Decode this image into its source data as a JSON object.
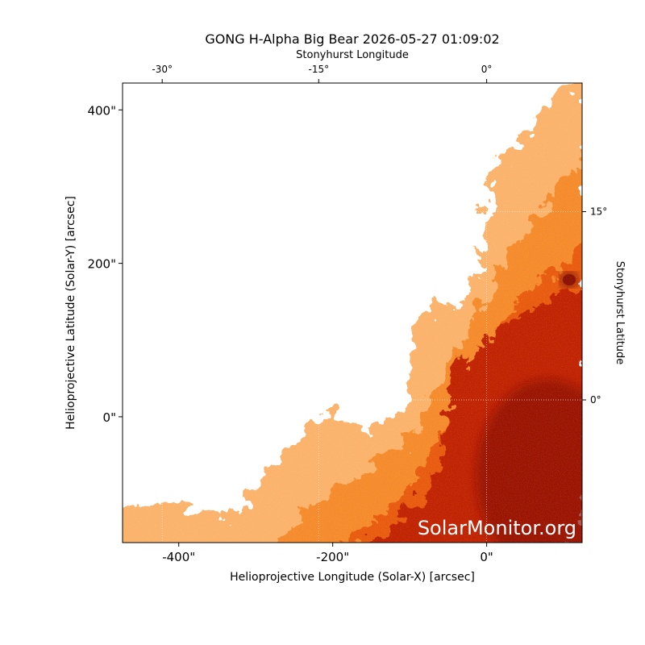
{
  "chart_data": {
    "type": "image",
    "title": "GONG H-Alpha Big Bear 2026-05-27 01:09:02",
    "xlabel": "Helioprojective Longitude (Solar-X) [arcsec]",
    "ylabel": "Helioprojective Latitude (Solar-Y) [arcsec]",
    "x2label": "Stonyhurst Longitude",
    "y2label": "Stonyhurst Latitude",
    "watermark": "SolarMonitor.org",
    "xlim": [
      -473,
      124
    ],
    "ylim": [
      -164,
      435
    ],
    "xticks": [
      {
        "value": -400,
        "label": "-400\""
      },
      {
        "value": -200,
        "label": "-200\""
      },
      {
        "value": 0,
        "label": "0\""
      }
    ],
    "yticks": [
      {
        "value": 0,
        "label": "0\""
      },
      {
        "value": 200,
        "label": "200\""
      },
      {
        "value": 400,
        "label": "400\""
      }
    ],
    "x2ticks": [
      {
        "value": -30,
        "label": "-30°"
      },
      {
        "value": -15,
        "label": "-15°"
      },
      {
        "value": 0,
        "label": "0°"
      }
    ],
    "y2ticks": [
      {
        "value": 0,
        "label": "0°"
      },
      {
        "value": 15,
        "label": "15°"
      }
    ]
  }
}
